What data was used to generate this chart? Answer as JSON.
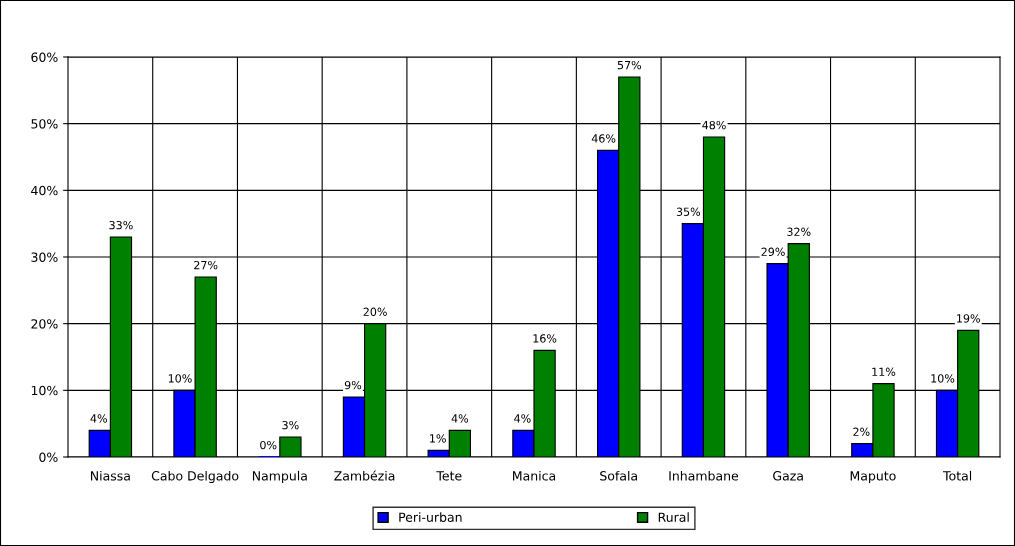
{
  "chart_data": {
    "type": "bar",
    "categories": [
      "Niassa",
      "Cabo Delgado",
      "Nampula",
      "Zambézia",
      "Tete",
      "Manica",
      "Sofala",
      "Inhambane",
      "Gaza",
      "Maputo",
      "Total"
    ],
    "series": [
      {
        "name": "Peri-urban",
        "color": "#0000ff",
        "values": [
          4,
          10,
          0,
          9,
          1,
          4,
          46,
          35,
          29,
          2,
          10
        ],
        "value_labels": [
          "4%",
          "10%",
          "0%",
          "9%",
          "1%",
          "4%",
          "46%",
          "35%",
          "29%",
          "2%",
          "10%"
        ]
      },
      {
        "name": "Rural",
        "color": "#008000",
        "values": [
          33,
          27,
          3,
          20,
          4,
          16,
          57,
          48,
          32,
          11,
          19
        ],
        "value_labels": [
          "33%",
          "27%",
          "3%",
          "20%",
          "4%",
          "16%",
          "57%",
          "48%",
          "32%",
          "11%",
          "19%"
        ]
      }
    ],
    "ylim": [
      0,
      60
    ],
    "yticks": [
      {
        "value": 0,
        "label": "0%"
      },
      {
        "value": 10,
        "label": "10%"
      },
      {
        "value": 20,
        "label": "20%"
      },
      {
        "value": 30,
        "label": "30%"
      },
      {
        "value": 40,
        "label": "40%"
      },
      {
        "value": 50,
        "label": "50%"
      },
      {
        "value": 60,
        "label": "60%"
      }
    ],
    "grid": true,
    "legend": "bottom"
  }
}
